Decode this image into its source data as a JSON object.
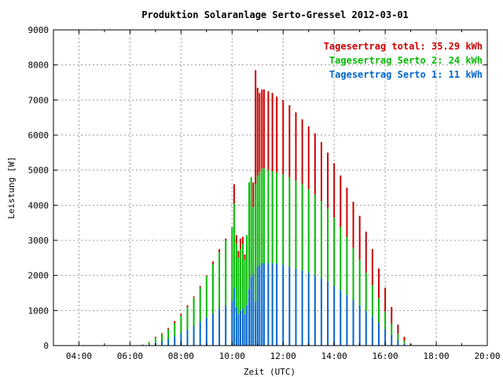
{
  "chart_data": {
    "type": "bar",
    "title": "Produktion Solaranlage Serto-Gressel 2012-03-01",
    "xlabel": "Zeit (UTC)",
    "ylabel": "Leistung [W]",
    "x_unit": "hour_utc",
    "xlim": [
      3.0,
      20.0
    ],
    "ylim": [
      0,
      9000
    ],
    "x_ticks": [
      4,
      6,
      8,
      10,
      12,
      14,
      16,
      18,
      20
    ],
    "x_tick_labels": [
      "04:00",
      "06:00",
      "08:00",
      "10:00",
      "12:00",
      "14:00",
      "16:00",
      "18:00",
      "20:00"
    ],
    "y_ticks": [
      0,
      1000,
      2000,
      3000,
      4000,
      5000,
      6000,
      7000,
      8000,
      9000
    ],
    "y_tick_labels": [
      "0",
      "1000",
      "2000",
      "3000",
      "4000",
      "5000",
      "6000",
      "7000",
      "8000",
      "9000"
    ],
    "grid": true,
    "legend_position": "top-right",
    "colors": {
      "total": "#cc0000",
      "serto2": "#00bb00",
      "serto1": "#0066cc"
    },
    "legend": [
      {
        "label": "Tagesertrag total: 35.29 kWh",
        "color": "#cc0000"
      },
      {
        "label": "Tagesertrag Serto 2: 24 kWh",
        "color": "#00bb00"
      },
      {
        "label": "Tagesertrag Serto 1: 11 kWh",
        "color": "#0066cc"
      }
    ],
    "stacked": true,
    "x": [
      6.5,
      6.75,
      7.0,
      7.25,
      7.5,
      7.75,
      8.0,
      8.25,
      8.5,
      8.75,
      9.0,
      9.25,
      9.5,
      9.75,
      10.0,
      10.08,
      10.17,
      10.25,
      10.33,
      10.42,
      10.5,
      10.58,
      10.67,
      10.75,
      10.83,
      10.92,
      11.0,
      11.08,
      11.17,
      11.25,
      11.42,
      11.58,
      11.75,
      12.0,
      12.25,
      12.5,
      12.75,
      13.0,
      13.25,
      13.5,
      13.75,
      14.0,
      14.25,
      14.5,
      14.75,
      15.0,
      15.25,
      15.5,
      15.75,
      16.0,
      16.25,
      16.5,
      16.75,
      17.0
    ],
    "series": [
      {
        "name": "Serto 1",
        "values": [
          0,
          30,
          80,
          120,
          180,
          260,
          350,
          450,
          560,
          680,
          800,
          920,
          1040,
          1160,
          1280,
          1650,
          1100,
          900,
          1000,
          1050,
          900,
          1150,
          1600,
          1950,
          2050,
          1250,
          2250,
          2300,
          2350,
          2350,
          2350,
          2350,
          2330,
          2300,
          2250,
          2200,
          2150,
          2080,
          2000,
          1920,
          1820,
          1700,
          1580,
          1450,
          1300,
          1150,
          980,
          820,
          650,
          470,
          300,
          160,
          60,
          10
        ]
      },
      {
        "name": "Serto 2",
        "values": [
          20,
          60,
          140,
          200,
          280,
          380,
          500,
          640,
          800,
          980,
          1180,
          1400,
          1620,
          1850,
          2100,
          2400,
          1800,
          1600,
          1750,
          1850,
          1550,
          2000,
          3050,
          2850,
          1900,
          3350,
          2600,
          2650,
          2700,
          2700,
          2650,
          2620,
          2600,
          2580,
          2550,
          2500,
          2450,
          2380,
          2300,
          2200,
          2080,
          1950,
          1800,
          1650,
          1480,
          1300,
          1100,
          900,
          700,
          500,
          320,
          170,
          70,
          10
        ]
      },
      {
        "name": "Total",
        "values": [
          30,
          100,
          250,
          350,
          500,
          700,
          900,
          1150,
          1400,
          1700,
          2000,
          2400,
          2750,
          3050,
          3250,
          4600,
          3150,
          2700,
          3050,
          3100,
          2600,
          3150,
          4650,
          4800,
          4650,
          7850,
          7350,
          7200,
          7300,
          7300,
          7250,
          7200,
          7100,
          7000,
          6850,
          6650,
          6450,
          6250,
          6050,
          5800,
          5500,
          5200,
          4850,
          4500,
          4100,
          3700,
          3250,
          2750,
          2200,
          1650,
          1100,
          600,
          250,
          50
        ]
      }
    ]
  }
}
